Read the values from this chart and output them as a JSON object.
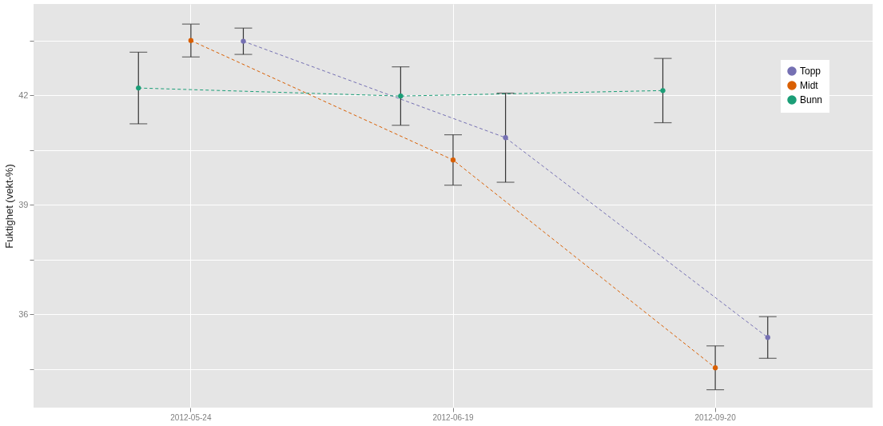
{
  "chart_data": {
    "type": "line",
    "ylabel": "Fuktighet (vekt-%)",
    "categories": [
      "2012-05-24",
      "2012-06-19",
      "2012-09-20"
    ],
    "series": [
      {
        "name": "Topp",
        "color": "#7570b3",
        "values": [
          43.48,
          40.84,
          35.37
        ],
        "errors": [
          0.36,
          1.22,
          0.57
        ]
      },
      {
        "name": "Midt",
        "color": "#d95f02",
        "values": [
          43.5,
          40.23,
          34.54
        ],
        "errors": [
          0.45,
          0.69,
          0.6
        ]
      },
      {
        "name": "Bunn",
        "color": "#1b9e77",
        "values": [
          42.2,
          41.98,
          42.13
        ],
        "errors": [
          0.98,
          0.8,
          0.88
        ]
      }
    ],
    "ylim": [
      33.45,
      44.5
    ],
    "yticks": [
      {
        "value": 34.5,
        "label": null
      },
      36,
      {
        "value": 37.5,
        "label": null
      },
      39,
      {
        "value": 40.5,
        "label": null
      },
      42,
      {
        "value": 43.5,
        "label": null
      }
    ],
    "grid": true,
    "legend": "right",
    "marker": "circle",
    "line_style": "dashed"
  }
}
